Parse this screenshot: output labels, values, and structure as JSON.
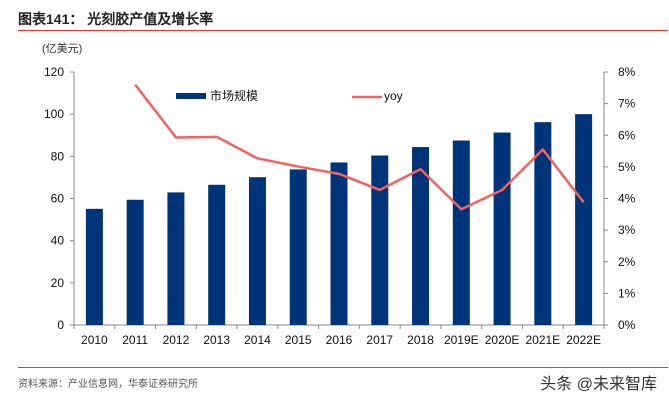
{
  "header": {
    "title": "图表141：  光刻胶产值及增长率"
  },
  "footer": {
    "source": "资料来源：产业信息网，华泰证券研究所",
    "watermark": "头条 @未来智库"
  },
  "chart_data": {
    "type": "bar+line",
    "title": "图表141：  光刻胶产值及增长率",
    "ylabel": "(亿美元)",
    "categories": [
      "2010",
      "2011",
      "2012",
      "2013",
      "2014",
      "2015",
      "2016",
      "2017",
      "2018",
      "2019E",
      "2020E",
      "2021E",
      "2022E"
    ],
    "series": [
      {
        "name": "市场规模",
        "type": "bar",
        "axis": "left",
        "color": "#003478",
        "values": [
          55.1,
          59.4,
          62.9,
          66.5,
          70.1,
          73.8,
          77.1,
          80.4,
          84.4,
          87.5,
          91.3,
          96.2,
          100.0
        ]
      },
      {
        "name": "yoy",
        "type": "line",
        "axis": "right",
        "color": "#f4625e",
        "values": [
          null,
          7.6,
          5.93,
          5.95,
          5.27,
          5.01,
          4.78,
          4.27,
          4.93,
          3.66,
          4.27,
          5.55,
          3.88
        ]
      }
    ],
    "ylim_left": [
      0,
      120
    ],
    "yticks_left": [
      "0",
      "20",
      "40",
      "60",
      "80",
      "100",
      "120"
    ],
    "ylim_right": [
      0,
      8
    ],
    "yticks_right": [
      "0%",
      "1%",
      "2%",
      "3%",
      "4%",
      "5%",
      "6%",
      "7%",
      "8%"
    ],
    "grid": false,
    "legend": "top"
  }
}
